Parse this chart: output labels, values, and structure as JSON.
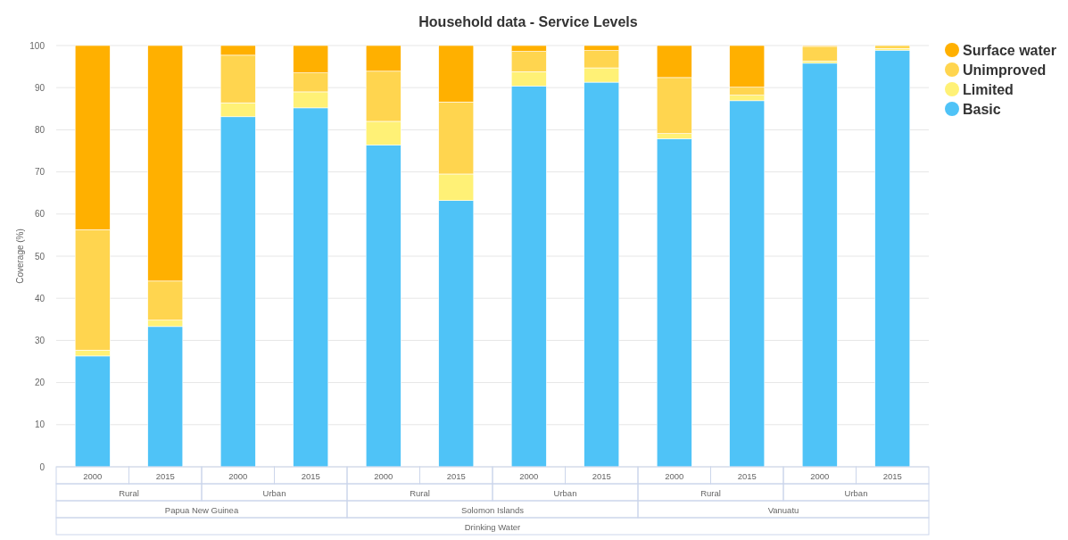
{
  "chart_data": {
    "type": "bar",
    "title": "Household data - Service Levels",
    "ylabel": "Coverage (%)",
    "categories": [
      "2000",
      "2015",
      "2000",
      "2015",
      "2000",
      "2015",
      "2000",
      "2015",
      "2000",
      "2015",
      "2000",
      "2015"
    ],
    "stacked": true,
    "legend": "top right",
    "grid": "y",
    "ylim": [
      0,
      100
    ],
    "yticks": [
      0,
      10,
      20,
      30,
      40,
      50,
      60,
      70,
      80,
      90,
      100
    ],
    "series": [
      {
        "name": "Basic",
        "color": "#4fc3f7",
        "values": [
          26.3,
          33.3,
          83.1,
          85.2,
          76.4,
          63.2,
          90.4,
          91.3,
          77.9,
          86.9,
          95.8,
          98.9
        ]
      },
      {
        "name": "Limited",
        "color": "#fff176",
        "values": [
          1.4,
          1.5,
          3.3,
          3.8,
          5.6,
          6.3,
          3.4,
          3.4,
          1.2,
          1.3,
          0.5,
          0.4
        ]
      },
      {
        "name": "Unimproved",
        "color": "#ffd54f",
        "values": [
          28.6,
          9.3,
          11.3,
          4.5,
          11.9,
          17.1,
          4.8,
          4.1,
          13.3,
          1.9,
          3.5,
          0.7
        ]
      },
      {
        "name": "Surface water",
        "color": "#ffb000",
        "values": [
          43.7,
          55.9,
          2.3,
          6.5,
          6.1,
          13.4,
          1.4,
          1.2,
          7.6,
          9.9,
          0.2,
          null
        ]
      }
    ],
    "annotations": [
      "Rural",
      "Urban",
      "Rural",
      "Urban",
      "Rural",
      "Urban",
      "Papua New Guinea",
      "Solomon Islands",
      "Vanuatu",
      "Drinking Water"
    ]
  }
}
